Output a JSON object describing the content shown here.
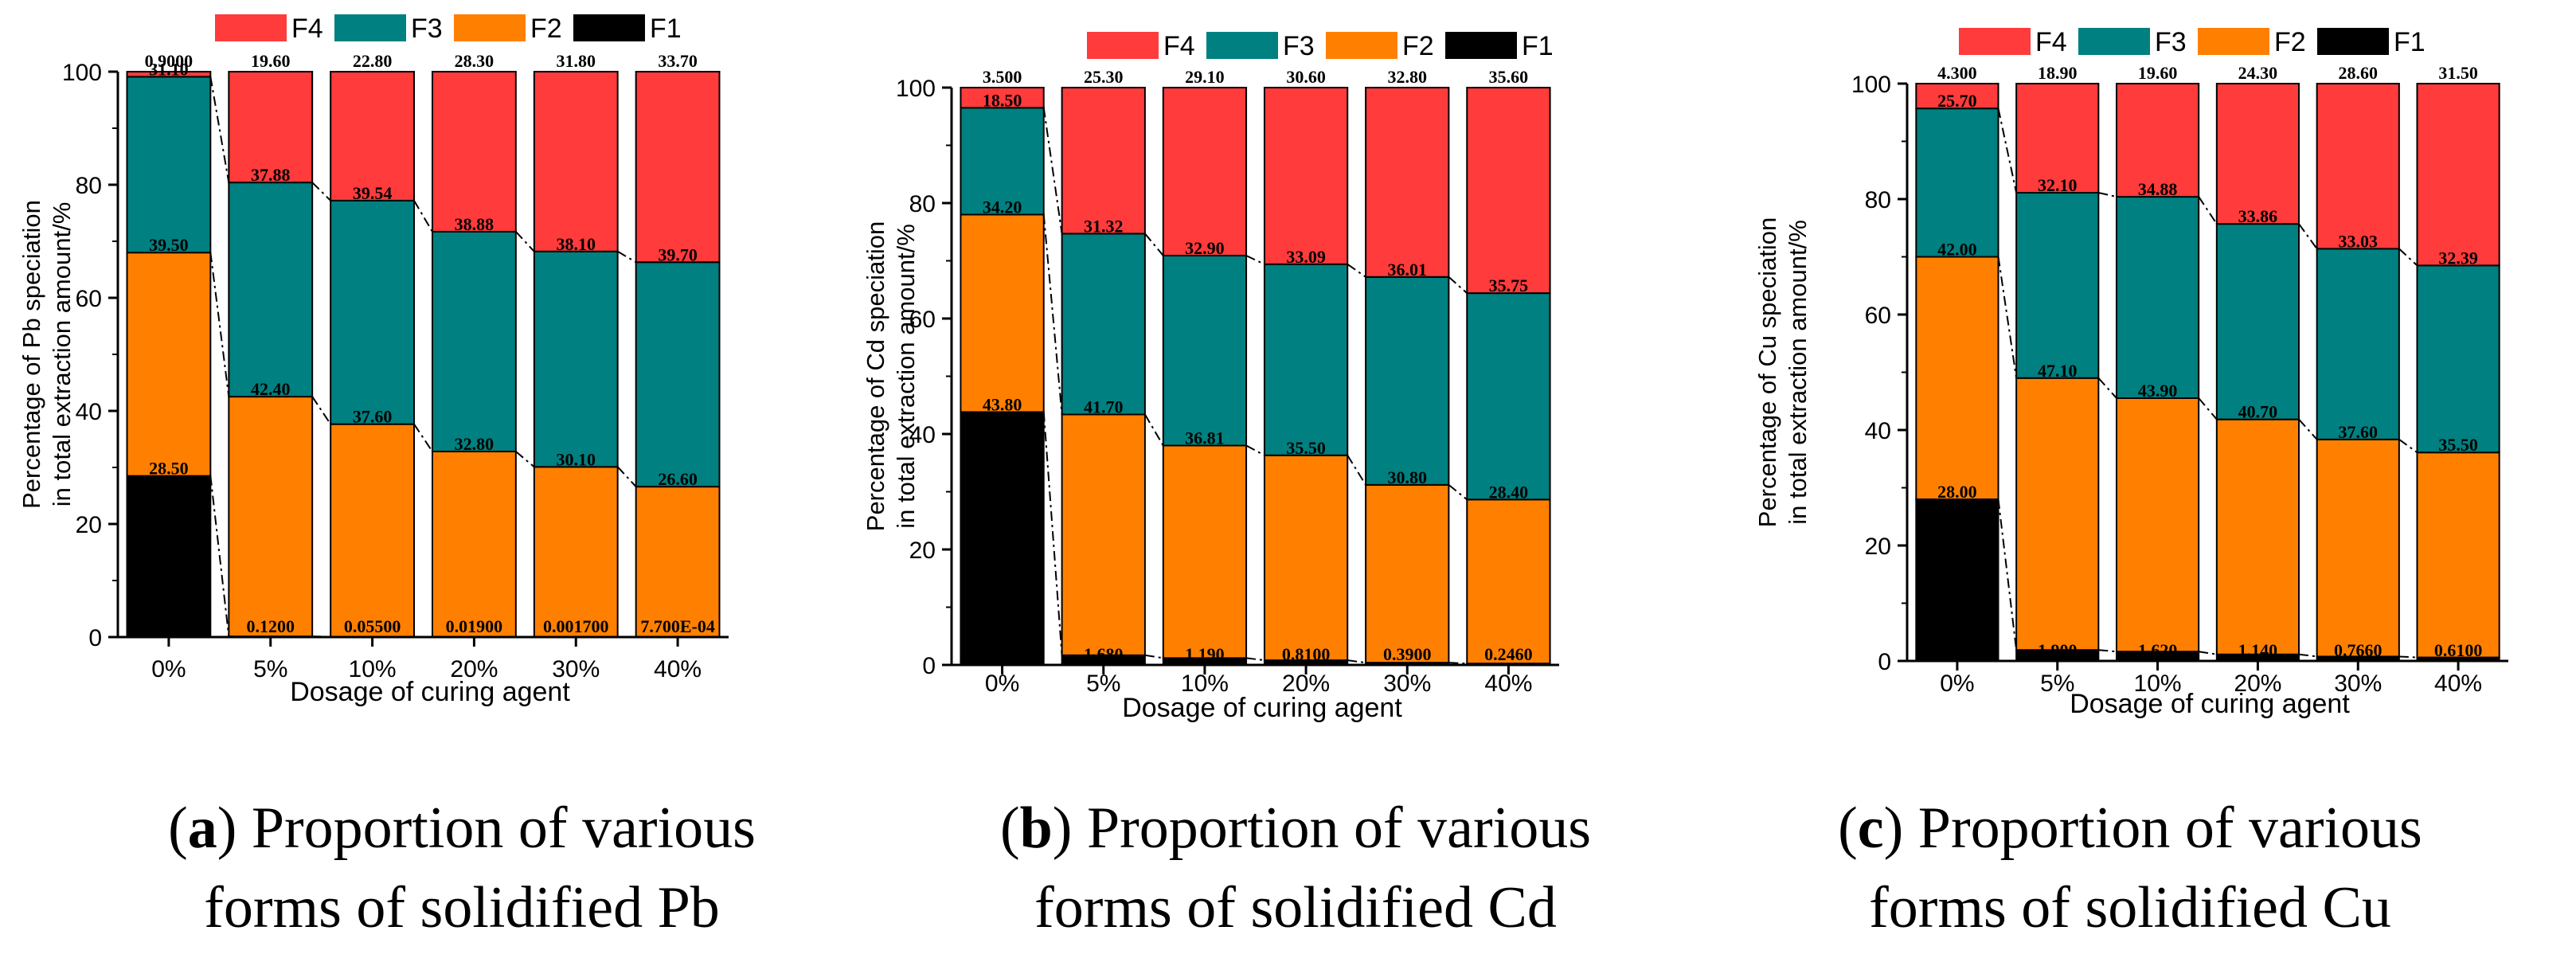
{
  "colors": {
    "F4": "#ff3b3b",
    "F3": "#008080",
    "F2": "#ff8000",
    "F1": "#000000"
  },
  "legend": [
    "F4",
    "F3",
    "F2",
    "F1"
  ],
  "charts_common": {
    "categories": [
      "0%",
      "5%",
      "10%",
      "20%",
      "30%",
      "40%"
    ],
    "xlabel": "Dosage of curing agent"
  },
  "chart_data": [
    {
      "type": "bar",
      "stacked": true,
      "metal": "Pb",
      "categories": [
        "0%",
        "5%",
        "10%",
        "20%",
        "30%",
        "40%"
      ],
      "xlabel": "Dosage of curing agent",
      "ylabel_lines": [
        "Percentage of Pb speciation",
        "in total extraction amount/%"
      ],
      "ylim": [
        0,
        100
      ],
      "yticks": [
        0,
        20,
        40,
        60,
        80,
        100
      ],
      "legend": [
        "F4",
        "F3",
        "F2",
        "F1"
      ],
      "series": [
        {
          "name": "F1",
          "values": [
            28.5,
            0.12,
            0.055,
            0.019,
            0.0017,
            0.00077
          ]
        },
        {
          "name": "F2",
          "values": [
            39.5,
            42.4,
            37.6,
            32.8,
            30.1,
            26.6
          ]
        },
        {
          "name": "F3",
          "values": [
            31.1,
            37.88,
            39.54,
            38.88,
            38.1,
            39.7
          ]
        },
        {
          "name": "F4",
          "values": [
            0.9,
            19.6,
            22.8,
            28.3,
            31.8,
            33.7
          ]
        }
      ],
      "labels": {
        "F1": [
          "28.50",
          "0.1200",
          "0.05500",
          "0.01900",
          "0.001700",
          "7.700E-04"
        ],
        "F2": [
          "39.50",
          "42.40",
          "37.60",
          "32.80",
          "30.10",
          "26.60"
        ],
        "F3": [
          "31.10",
          "37.88",
          "39.54",
          "38.88",
          "38.10",
          "39.70"
        ],
        "F4": [
          "0.9000",
          "19.60",
          "22.80",
          "28.30",
          "31.80",
          "33.70"
        ]
      },
      "caption": {
        "letter": "a",
        "line1_rest": ") Proportion of various",
        "line2": "forms of solidified Pb"
      }
    },
    {
      "type": "bar",
      "stacked": true,
      "metal": "Cd",
      "categories": [
        "0%",
        "5%",
        "10%",
        "20%",
        "30%",
        "40%"
      ],
      "xlabel": "Dosage of curing agent",
      "ylabel_lines": [
        "Percentage of Cd speciation",
        "in total extraction amount/%"
      ],
      "ylim": [
        0,
        100
      ],
      "yticks": [
        0,
        20,
        40,
        60,
        80,
        100
      ],
      "legend": [
        "F4",
        "F3",
        "F2",
        "F1"
      ],
      "series": [
        {
          "name": "F1",
          "values": [
            43.8,
            1.68,
            1.19,
            0.81,
            0.39,
            0.246
          ]
        },
        {
          "name": "F2",
          "values": [
            34.2,
            41.7,
            36.81,
            35.5,
            30.8,
            28.4
          ]
        },
        {
          "name": "F3",
          "values": [
            18.5,
            31.32,
            32.9,
            33.09,
            36.01,
            35.75
          ]
        },
        {
          "name": "F4",
          "values": [
            3.5,
            25.3,
            29.1,
            30.6,
            32.8,
            35.6
          ]
        }
      ],
      "labels": {
        "F1": [
          "43.80",
          "1.680",
          "1.190",
          "0.8100",
          "0.3900",
          "0.2460"
        ],
        "F2": [
          "34.20",
          "41.70",
          "36.81",
          "35.50",
          "30.80",
          "28.40"
        ],
        "F3": [
          "18.50",
          "31.32",
          "32.90",
          "33.09",
          "36.01",
          "35.75"
        ],
        "F4": [
          "3.500",
          "25.30",
          "29.10",
          "30.60",
          "32.80",
          "35.60"
        ]
      },
      "caption": {
        "letter": "b",
        "line1_rest": ") Proportion of various",
        "line2": "forms of solidified Cd"
      }
    },
    {
      "type": "bar",
      "stacked": true,
      "metal": "Cu",
      "categories": [
        "0%",
        "5%",
        "10%",
        "20%",
        "30%",
        "40%"
      ],
      "xlabel": "Dosage of curing agent",
      "ylabel_lines": [
        "Percentage of Cu speciation",
        "in total extraction amount/%"
      ],
      "ylim": [
        0,
        100
      ],
      "yticks": [
        0,
        20,
        40,
        60,
        80,
        100
      ],
      "legend": [
        "F4",
        "F3",
        "F2",
        "F1"
      ],
      "series": [
        {
          "name": "F1",
          "values": [
            28.0,
            1.9,
            1.62,
            1.14,
            0.766,
            0.61
          ]
        },
        {
          "name": "F2",
          "values": [
            42.0,
            47.1,
            43.9,
            40.7,
            37.6,
            35.5
          ]
        },
        {
          "name": "F3",
          "values": [
            25.7,
            32.1,
            34.88,
            33.86,
            33.03,
            32.39
          ]
        },
        {
          "name": "F4",
          "values": [
            4.3,
            18.9,
            19.6,
            24.3,
            28.6,
            31.5
          ]
        }
      ],
      "labels": {
        "F1": [
          "28.00",
          "1.900",
          "1.620",
          "1.140",
          "0.7660",
          "0.6100"
        ],
        "F2": [
          "42.00",
          "47.10",
          "43.90",
          "40.70",
          "37.60",
          "35.50"
        ],
        "F3": [
          "25.70",
          "32.10",
          "34.88",
          "33.86",
          "33.03",
          "32.39"
        ],
        "F4": [
          "4.300",
          "18.90",
          "19.60",
          "24.30",
          "28.60",
          "31.50"
        ]
      },
      "caption": {
        "letter": "c",
        "line1_rest": ") Proportion of various",
        "line2": "forms of solidified Cu"
      }
    }
  ]
}
